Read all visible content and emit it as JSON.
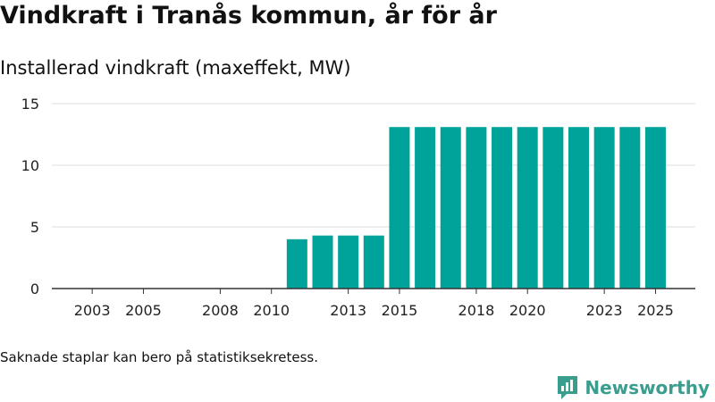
{
  "title": "Vindkraft i Tranås kommun, år för år",
  "footnote": "Saknade staplar kan bero på statistiksekretess.",
  "brand": {
    "name": "Newsworthy",
    "logo_icon": "newsworthy-logo-icon",
    "color": "#3a9e8f"
  },
  "chart_data": {
    "type": "bar",
    "title": "Installerad vindkraft (maxeffekt, MW)",
    "xlabel": "",
    "ylabel": "",
    "ylim": [
      0,
      15
    ],
    "yticks": [
      0,
      5,
      10,
      15
    ],
    "categories": [
      2002,
      2003,
      2004,
      2005,
      2006,
      2007,
      2008,
      2009,
      2010,
      2011,
      2012,
      2013,
      2014,
      2015,
      2016,
      2017,
      2018,
      2019,
      2020,
      2021,
      2022,
      2023,
      2024,
      2025
    ],
    "values": [
      0,
      0,
      0,
      0,
      0,
      0,
      0,
      0,
      0,
      4,
      4.3,
      4.3,
      4.3,
      13.1,
      13.1,
      13.1,
      13.1,
      13.1,
      13.1,
      13.1,
      13.1,
      13.1,
      13.1,
      13.1
    ],
    "xtick_labels": [
      2003,
      2005,
      2008,
      2010,
      2013,
      2015,
      2018,
      2020,
      2023,
      2025
    ],
    "bar_color": "#00a39a",
    "grid": true
  }
}
